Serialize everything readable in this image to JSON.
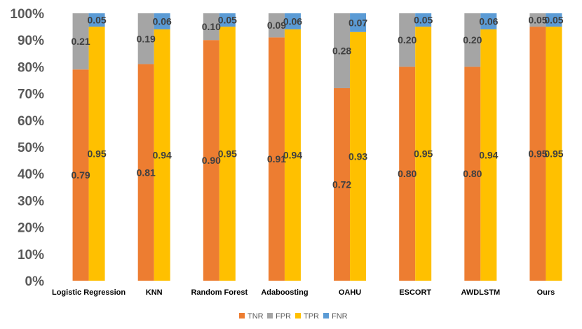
{
  "chart_data": {
    "type": "bar",
    "stacked": true,
    "title": "",
    "xlabel": "",
    "ylabel": "",
    "ylim": [
      0,
      100
    ],
    "ytick_labels": [
      "0%",
      "10%",
      "20%",
      "30%",
      "40%",
      "50%",
      "60%",
      "70%",
      "80%",
      "90%",
      "100%"
    ],
    "categories": [
      "Logistic Regression",
      "KNN",
      "Random Forest",
      "Adaboosting",
      "OAHU",
      "ESCORT",
      "AWDLSTM",
      "Ours"
    ],
    "groups": [
      {
        "name": "negative",
        "stack": [
          "TNR",
          "FPR"
        ]
      },
      {
        "name": "positive",
        "stack": [
          "TPR",
          "FNR"
        ]
      }
    ],
    "series": [
      {
        "name": "TNR",
        "color": "#ED7D31",
        "values": [
          0.79,
          0.81,
          0.9,
          0.91,
          0.72,
          0.8,
          0.8,
          0.95
        ],
        "labels": [
          "0.79",
          "0.81",
          "0.90",
          "0.91",
          "0.72",
          "0.80",
          "0.80",
          "0.95"
        ]
      },
      {
        "name": "FPR",
        "color": "#A5A5A5",
        "values": [
          0.21,
          0.19,
          0.1,
          0.09,
          0.28,
          0.2,
          0.2,
          0.05
        ],
        "labels": [
          "0.21",
          "0.19",
          "0.10",
          "0.09",
          "0.28",
          "0.20",
          "0.20",
          "0.05"
        ]
      },
      {
        "name": "TPR",
        "color": "#FFC000",
        "values": [
          0.95,
          0.94,
          0.95,
          0.94,
          0.93,
          0.95,
          0.94,
          0.95
        ],
        "labels": [
          "0.95",
          "0.94",
          "0.95",
          "0.94",
          "0.93",
          "0.95",
          "0.94",
          "0.95"
        ]
      },
      {
        "name": "FNR",
        "color": "#5B9BD5",
        "values": [
          0.05,
          0.06,
          0.05,
          0.06,
          0.07,
          0.05,
          0.06,
          0.05
        ],
        "labels": [
          "0.05",
          "0.06",
          "0.05",
          "0.06",
          "0.07",
          "0.05",
          "0.06",
          "0.05"
        ]
      }
    ],
    "legend": {
      "position": "bottom",
      "entries": [
        "TNR",
        "FPR",
        "TPR",
        "FNR"
      ]
    },
    "grid": false
  }
}
